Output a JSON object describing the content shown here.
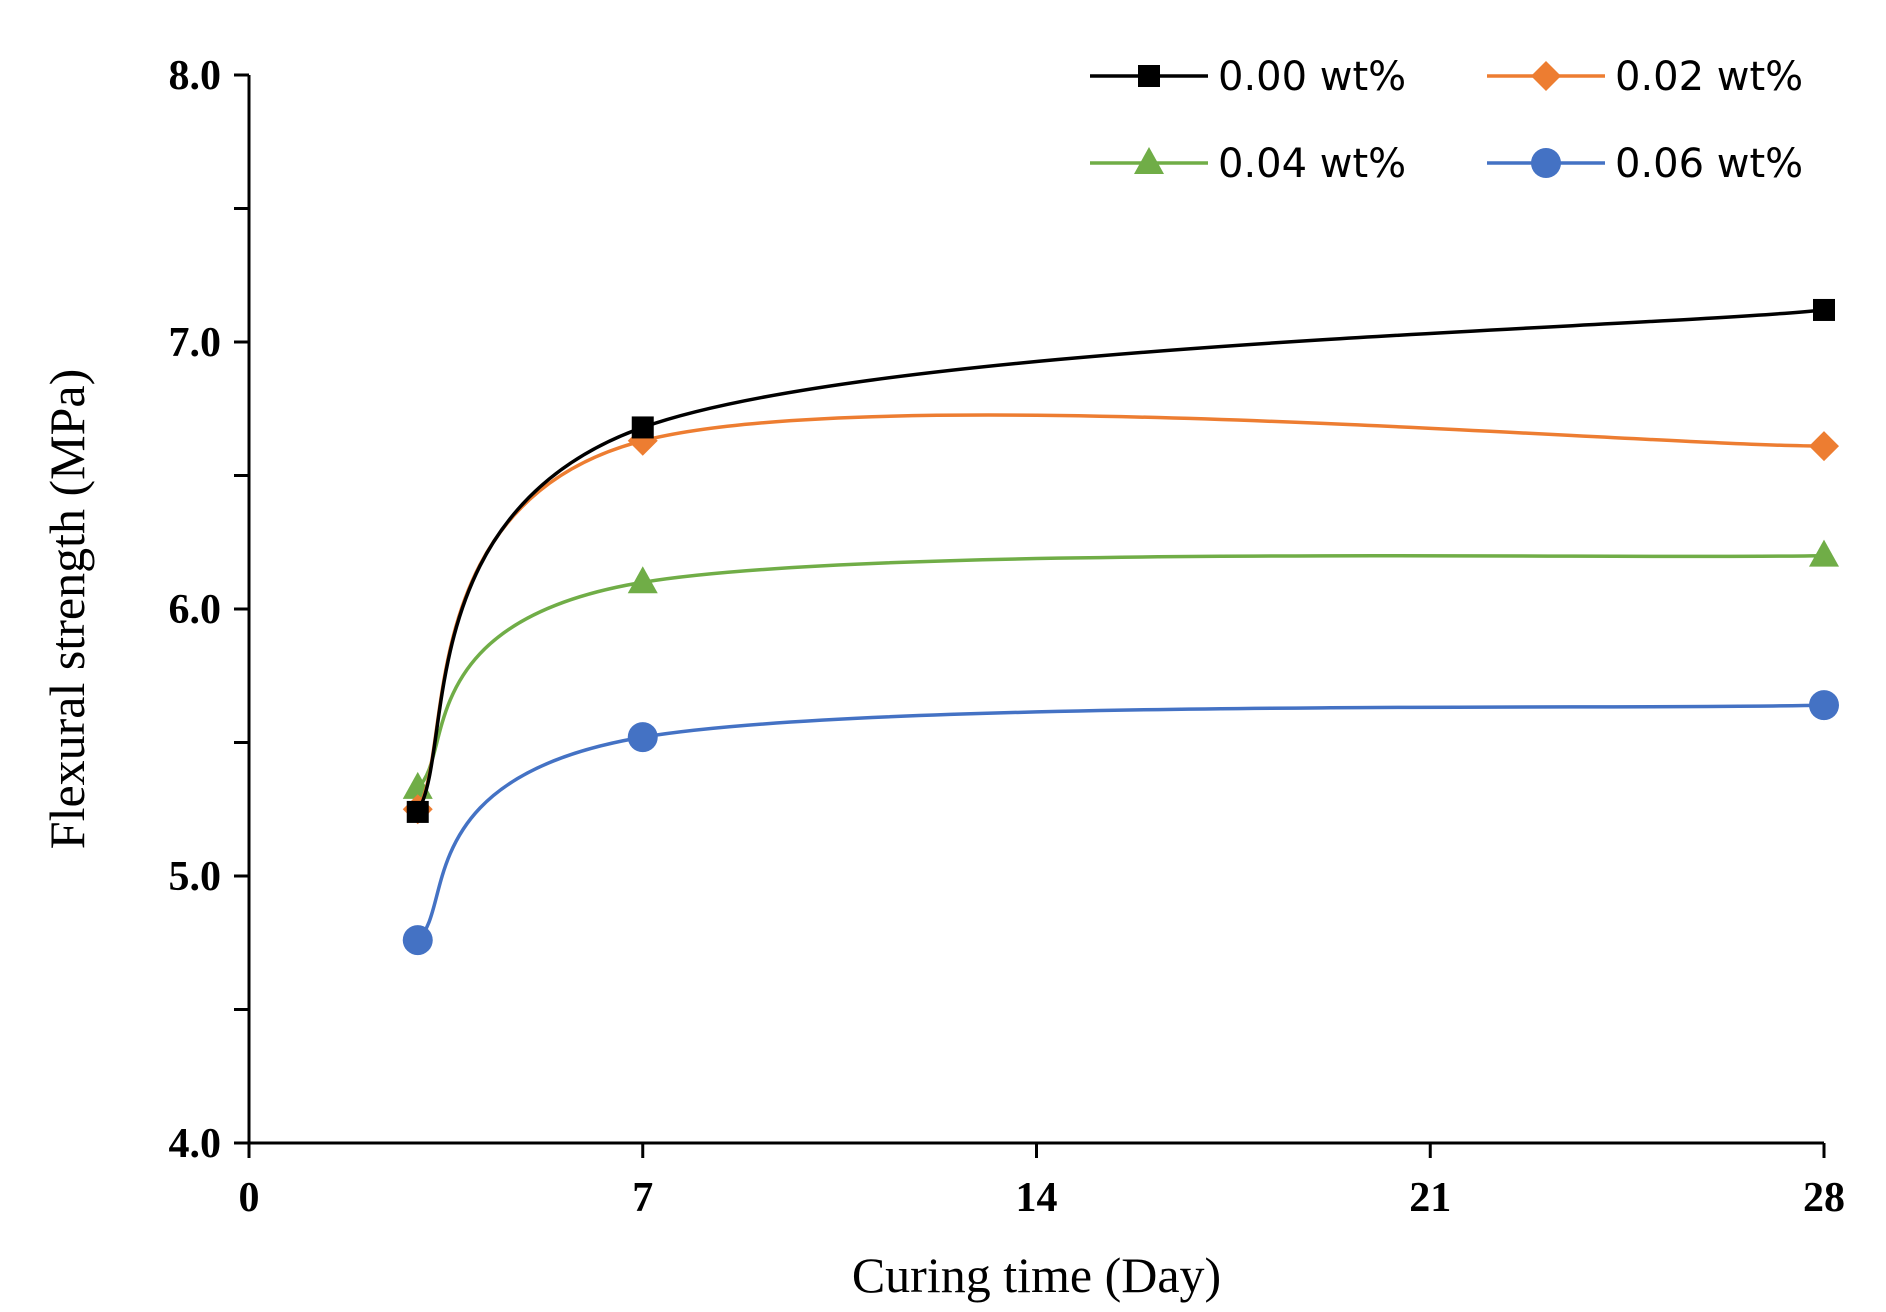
{
  "chart_data": {
    "type": "line",
    "title": "",
    "xlabel": "Curing time (Day)",
    "ylabel": "Flexural strength (MPa)",
    "xlim": [
      0,
      28
    ],
    "ylim": [
      4.0,
      8.0
    ],
    "xticks": [
      0,
      7,
      14,
      21,
      28
    ],
    "xtick_labels": [
      "0",
      "7",
      "14",
      "21",
      "28"
    ],
    "yticks": [
      4.0,
      5.0,
      6.0,
      7.0,
      8.0
    ],
    "ytick_labels": [
      "4.0",
      "5.0",
      "6.0",
      "7.0",
      "8.0"
    ],
    "y_minor_step": 0.5,
    "grid": false,
    "legend_position": "top-right",
    "series": [
      {
        "name": "0.00 wt%",
        "color": "#000000",
        "marker": "square",
        "x": [
          3,
          7,
          28
        ],
        "values": [
          5.24,
          6.68,
          7.12
        ]
      },
      {
        "name": "0.02 wt%",
        "color": "#ED7D31",
        "marker": "diamond",
        "x": [
          3,
          7,
          28
        ],
        "values": [
          5.25,
          6.63,
          6.61
        ]
      },
      {
        "name": "0.04 wt%",
        "color": "#70AD47",
        "marker": "triangle",
        "x": [
          3,
          7,
          28
        ],
        "values": [
          5.33,
          6.1,
          6.2
        ]
      },
      {
        "name": "0.06 wt%",
        "color": "#4472C4",
        "marker": "circle",
        "x": [
          3,
          7,
          28
        ],
        "values": [
          4.76,
          5.52,
          5.64
        ]
      }
    ]
  }
}
